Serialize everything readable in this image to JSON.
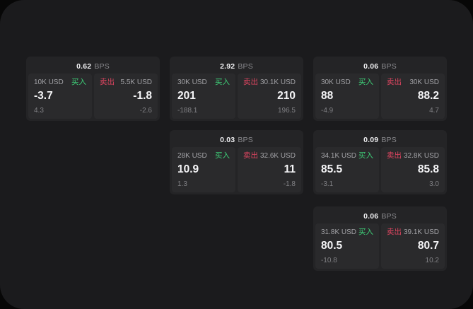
{
  "page": {
    "background": "#070707",
    "panel_background": "#1b1b1d"
  },
  "colors": {
    "card_bg": "#242426",
    "subcard_bg": "#2a2a2c",
    "buy_green": "#3ecf78",
    "sell_red": "#de4560",
    "amount_gray": "#a2a2a6",
    "delta_gray": "#808084",
    "price_white": "#f5f5f7",
    "bps_label_gray": "#8a8a8e"
  },
  "labels": {
    "bps": "BPS",
    "buy": "买入",
    "sell": "卖出"
  },
  "cards": [
    {
      "row": 1,
      "col": 1,
      "bps": "0.62",
      "buy": {
        "amount": "10K USD",
        "price": "-3.7",
        "delta": "4.3"
      },
      "sell": {
        "amount": "5.5K USD",
        "price": "-1.8",
        "delta": "-2.6"
      }
    },
    {
      "row": 1,
      "col": 2,
      "bps": "2.92",
      "buy": {
        "amount": "30K USD",
        "price": "201",
        "delta": "-188.1"
      },
      "sell": {
        "amount": "30.1K USD",
        "price": "210",
        "delta": "196.5"
      }
    },
    {
      "row": 1,
      "col": 3,
      "bps": "0.06",
      "buy": {
        "amount": "30K USD",
        "price": "88",
        "delta": "-4.9"
      },
      "sell": {
        "amount": "30K USD",
        "price": "88.2",
        "delta": "4.7"
      }
    },
    {
      "row": 2,
      "col": 2,
      "bps": "0.03",
      "buy": {
        "amount": "28K USD",
        "price": "10.9",
        "delta": "1.3"
      },
      "sell": {
        "amount": "32.6K USD",
        "price": "11",
        "delta": "-1.8"
      }
    },
    {
      "row": 2,
      "col": 3,
      "bps": "0.09",
      "buy": {
        "amount": "34.1K USD",
        "price": "85.5",
        "delta": "-3.1"
      },
      "sell": {
        "amount": "32.8K USD",
        "price": "85.8",
        "delta": "3.0"
      }
    },
    {
      "row": 3,
      "col": 3,
      "bps": "0.06",
      "buy": {
        "amount": "31.8K USD",
        "price": "80.5",
        "delta": "-10.8"
      },
      "sell": {
        "amount": "39.1K USD",
        "price": "80.7",
        "delta": "10.2"
      }
    }
  ]
}
